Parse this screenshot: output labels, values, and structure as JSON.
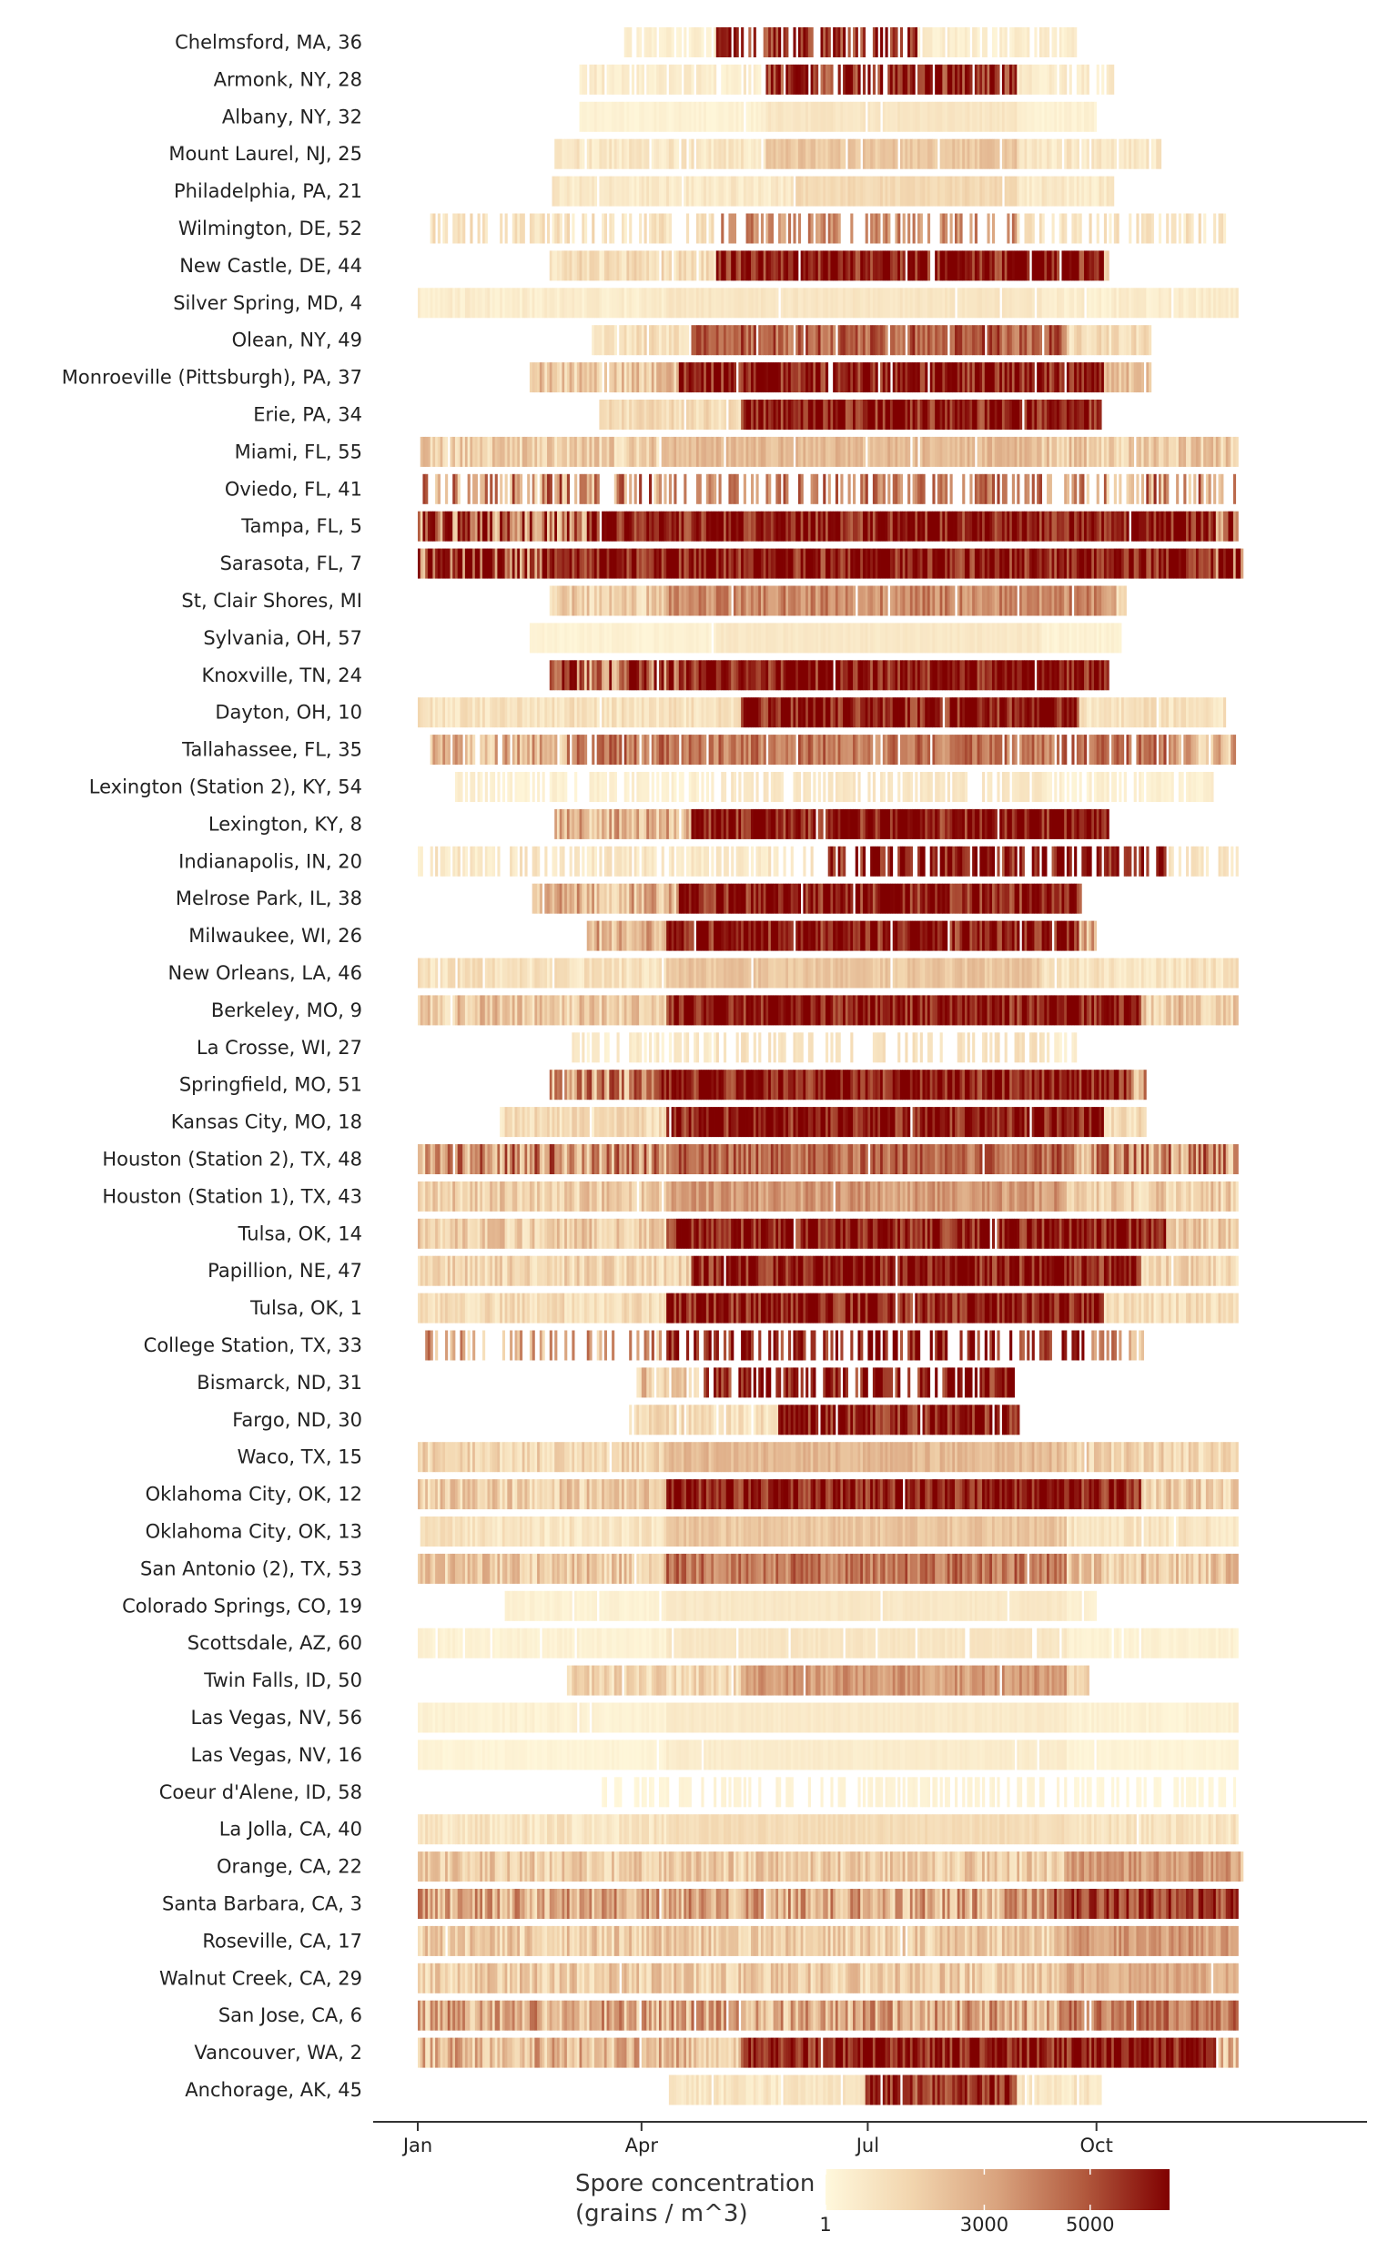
{
  "chart_data": {
    "type": "heatmap",
    "title": "",
    "xlabel": "",
    "ylabel": "",
    "x_range_days": [
      0,
      365
    ],
    "x_ticks": [
      {
        "label": "Jan",
        "day": 0
      },
      {
        "label": "Apr",
        "day": 90
      },
      {
        "label": "Jul",
        "day": 181
      },
      {
        "label": "Oct",
        "day": 273
      }
    ],
    "legend": {
      "title_line1": "Spore concentration",
      "title_line2": "(grains / m^3)",
      "min": 1,
      "max": 6500,
      "ticks": [
        {
          "label": "1",
          "value": 1
        },
        {
          "label": "3000",
          "value": 3000
        },
        {
          "label": "5000",
          "value": 5000
        }
      ],
      "colors": [
        "#fff8dc",
        "#f2d5ae",
        "#d9a37e",
        "#b25a3e",
        "#800000"
      ]
    },
    "stations": [
      {
        "label": "Chelmsford, MA, 36",
        "start": 82,
        "end": 265,
        "base": 500,
        "peak": 6000,
        "peak_start": 120,
        "peak_end": 200,
        "gap": 0.25
      },
      {
        "label": "Armonk, NY, 28",
        "start": 65,
        "end": 280,
        "base": 600,
        "peak": 6000,
        "peak_start": 140,
        "peak_end": 240,
        "gap": 0.2
      },
      {
        "label": "Albany, NY, 32",
        "start": 65,
        "end": 273,
        "base": 300,
        "peak": 900,
        "peak_start": 140,
        "peak_end": 240,
        "gap": 0.02
      },
      {
        "label": "Mount Laurel, NJ, 25",
        "start": 55,
        "end": 300,
        "base": 800,
        "peak": 2200,
        "peak_start": 140,
        "peak_end": 240,
        "gap": 0.05
      },
      {
        "label": "Philadelphia, PA, 21",
        "start": 54,
        "end": 280,
        "base": 700,
        "peak": 1500,
        "peak_start": 150,
        "peak_end": 240,
        "gap": 0.02
      },
      {
        "label": "Wilmington, DE, 52",
        "start": 5,
        "end": 325,
        "base": 1000,
        "peak": 4000,
        "peak_start": 120,
        "peak_end": 240,
        "gap": 0.45
      },
      {
        "label": "New Castle, DE, 44",
        "start": 53,
        "end": 278,
        "base": 1200,
        "peak": 6500,
        "peak_start": 120,
        "peak_end": 275,
        "gap": 0.02
      },
      {
        "label": "Silver Spring, MD, 4",
        "start": 0,
        "end": 330,
        "base": 500,
        "peak": 900,
        "peak_start": 100,
        "peak_end": 250,
        "gap": 0.02
      },
      {
        "label": "Olean, NY, 49",
        "start": 70,
        "end": 295,
        "base": 1200,
        "peak": 5000,
        "peak_start": 110,
        "peak_end": 260,
        "gap": 0.05
      },
      {
        "label": "Monroeville (Pittsburgh), PA, 37",
        "start": 45,
        "end": 295,
        "base": 2000,
        "peak": 6500,
        "peak_start": 105,
        "peak_end": 275,
        "gap": 0.03
      },
      {
        "label": "Erie, PA, 34",
        "start": 73,
        "end": 275,
        "base": 1200,
        "peak": 6500,
        "peak_start": 130,
        "peak_end": 275,
        "gap": 0.02
      },
      {
        "label": "Miami, FL, 55",
        "start": 0,
        "end": 330,
        "base": 1800,
        "peak": 2600,
        "peak_start": 100,
        "peak_end": 250,
        "gap": 0.02
      },
      {
        "label": "Oviedo, FL, 41",
        "start": 0,
        "end": 330,
        "base": 3500,
        "peak": 4500,
        "peak_start": 100,
        "peak_end": 250,
        "gap": 0.5
      },
      {
        "label": "Tampa, FL, 5",
        "start": 0,
        "end": 330,
        "base": 4800,
        "peak": 6500,
        "peak_start": 70,
        "peak_end": 320,
        "gap": 0.01
      },
      {
        "label": "Sarasota, FL, 7",
        "start": 0,
        "end": 332,
        "base": 5500,
        "peak": 6500,
        "peak_start": 50,
        "peak_end": 320,
        "gap": 0
      },
      {
        "label": "St,  Clair Shores, MI",
        "start": 53,
        "end": 285,
        "base": 1800,
        "peak": 4000,
        "peak_start": 100,
        "peak_end": 280,
        "gap": 0.03
      },
      {
        "label": "Sylvania, OH, 57",
        "start": 45,
        "end": 283,
        "base": 300,
        "peak": 800,
        "peak_start": 120,
        "peak_end": 250,
        "gap": 0.02
      },
      {
        "label": "Knoxville, TN, 24",
        "start": 53,
        "end": 278,
        "base": 4500,
        "peak": 6500,
        "peak_start": 105,
        "peak_end": 278,
        "gap": 0.01
      },
      {
        "label": "Dayton, OH, 10",
        "start": 0,
        "end": 325,
        "base": 1000,
        "peak": 6500,
        "peak_start": 130,
        "peak_end": 265,
        "gap": 0.02
      },
      {
        "label": "Tallahassee, FL, 35",
        "start": 5,
        "end": 330,
        "base": 2500,
        "peak": 4500,
        "peak_start": 60,
        "peak_end": 300,
        "gap": 0.12
      },
      {
        "label": "Lexington (Station 2), KY, 54",
        "start": 15,
        "end": 320,
        "base": 400,
        "peak": 900,
        "peak_start": 120,
        "peak_end": 250,
        "gap": 0.35
      },
      {
        "label": "Lexington, KY, 8",
        "start": 55,
        "end": 278,
        "base": 2500,
        "peak": 6500,
        "peak_start": 110,
        "peak_end": 278,
        "gap": 0.02
      },
      {
        "label": "Indianapolis, IN, 20",
        "start": 0,
        "end": 330,
        "base": 800,
        "peak": 6500,
        "peak_start": 160,
        "peak_end": 300,
        "gap": 0.35
      },
      {
        "label": "Melrose Park, IL, 38",
        "start": 46,
        "end": 267,
        "base": 2500,
        "peak": 6500,
        "peak_start": 105,
        "peak_end": 267,
        "gap": 0.01
      },
      {
        "label": "Milwaukee, WI, 26",
        "start": 68,
        "end": 273,
        "base": 2500,
        "peak": 6500,
        "peak_start": 100,
        "peak_end": 265,
        "gap": 0.02
      },
      {
        "label": "New Orleans, LA, 46",
        "start": 0,
        "end": 330,
        "base": 1000,
        "peak": 2200,
        "peak_start": 100,
        "peak_end": 250,
        "gap": 0.02
      },
      {
        "label": "Berkeley, MO, 9",
        "start": 0,
        "end": 330,
        "base": 2000,
        "peak": 6500,
        "peak_start": 100,
        "peak_end": 290,
        "gap": 0.01
      },
      {
        "label": "La Crosse, WI, 27",
        "start": 60,
        "end": 265,
        "base": 600,
        "peak": 1200,
        "peak_start": 120,
        "peak_end": 250,
        "gap": 0.5
      },
      {
        "label": "Springfield, MO, 51",
        "start": 53,
        "end": 293,
        "base": 3500,
        "peak": 6500,
        "peak_start": 95,
        "peak_end": 285,
        "gap": 0.01
      },
      {
        "label": "Kansas City, MO, 18",
        "start": 33,
        "end": 293,
        "base": 1200,
        "peak": 6500,
        "peak_start": 100,
        "peak_end": 275,
        "gap": 0.02
      },
      {
        "label": "Houston (Station 2), TX, 48",
        "start": 0,
        "end": 330,
        "base": 3500,
        "peak": 4800,
        "peak_start": 100,
        "peak_end": 260,
        "gap": 0.01
      },
      {
        "label": "Houston (Station 1), TX, 43",
        "start": 0,
        "end": 330,
        "base": 1800,
        "peak": 3500,
        "peak_start": 100,
        "peak_end": 260,
        "gap": 0.02
      },
      {
        "label": "Tulsa, OK, 14",
        "start": 0,
        "end": 330,
        "base": 1800,
        "peak": 6500,
        "peak_start": 100,
        "peak_end": 300,
        "gap": 0.01
      },
      {
        "label": "Papillion, NE, 47",
        "start": 0,
        "end": 330,
        "base": 1500,
        "peak": 6500,
        "peak_start": 110,
        "peak_end": 290,
        "gap": 0.01
      },
      {
        "label": "Tulsa, OK, 1",
        "start": 0,
        "end": 330,
        "base": 1200,
        "peak": 6500,
        "peak_start": 100,
        "peak_end": 275,
        "gap": 0.01
      },
      {
        "label": "College Station, TX, 33",
        "start": 3,
        "end": 293,
        "base": 3000,
        "peak": 6500,
        "peak_start": 100,
        "peak_end": 270,
        "gap": 0.55
      },
      {
        "label": "Bismarck, ND, 31",
        "start": 88,
        "end": 240,
        "base": 2500,
        "peak": 6500,
        "peak_start": 115,
        "peak_end": 240,
        "gap": 0.3
      },
      {
        "label": "Fargo, ND, 30",
        "start": 85,
        "end": 242,
        "base": 1200,
        "peak": 6500,
        "peak_start": 145,
        "peak_end": 242,
        "gap": 0.08
      },
      {
        "label": "Waco, TX, 15",
        "start": 0,
        "end": 330,
        "base": 1500,
        "peak": 2600,
        "peak_start": 100,
        "peak_end": 260,
        "gap": 0.01
      },
      {
        "label": "Oklahoma City, OK, 12",
        "start": 0,
        "end": 330,
        "base": 1800,
        "peak": 6500,
        "peak_start": 100,
        "peak_end": 290,
        "gap": 0.01
      },
      {
        "label": "Oklahoma City, OK, 13",
        "start": 0,
        "end": 330,
        "base": 900,
        "peak": 2200,
        "peak_start": 100,
        "peak_end": 260,
        "gap": 0.01
      },
      {
        "label": "San Antonio (2), TX, 53",
        "start": 0,
        "end": 330,
        "base": 2000,
        "peak": 4500,
        "peak_start": 100,
        "peak_end": 260,
        "gap": 0.01
      },
      {
        "label": "Colorado Springs, CO, 19",
        "start": 35,
        "end": 273,
        "base": 300,
        "peak": 800,
        "peak_start": 100,
        "peak_end": 260,
        "gap": 0.03
      },
      {
        "label": "Scottsdale, AZ, 60",
        "start": 0,
        "end": 330,
        "base": 300,
        "peak": 900,
        "peak_start": 100,
        "peak_end": 260,
        "gap": 0.05
      },
      {
        "label": "Twin Falls, ID, 50",
        "start": 60,
        "end": 270,
        "base": 1500,
        "peak": 3500,
        "peak_start": 130,
        "peak_end": 260,
        "gap": 0.02
      },
      {
        "label": "Las Vegas, NV, 56",
        "start": 0,
        "end": 330,
        "base": 300,
        "peak": 700,
        "peak_start": 100,
        "peak_end": 260,
        "gap": 0.01
      },
      {
        "label": "Las Vegas, NV, 16",
        "start": 0,
        "end": 330,
        "base": 200,
        "peak": 600,
        "peak_start": 100,
        "peak_end": 260,
        "gap": 0.02
      },
      {
        "label": "Coeur d'Alene, ID, 58",
        "start": 70,
        "end": 330,
        "base": 100,
        "peak": 300,
        "peak_start": 100,
        "peak_end": 260,
        "gap": 0.55
      },
      {
        "label": "La Jolla, CA, 40",
        "start": 0,
        "end": 330,
        "base": 900,
        "peak": 1400,
        "peak_start": 100,
        "peak_end": 260,
        "gap": 0.01
      },
      {
        "label": "Orange, CA, 22",
        "start": 0,
        "end": 332,
        "base": 1800,
        "peak": 3500,
        "peak_start": 260,
        "peak_end": 330,
        "gap": 0
      },
      {
        "label": "Santa Barbara, CA, 3",
        "start": 0,
        "end": 330,
        "base": 2800,
        "peak": 5500,
        "peak_start": 255,
        "peak_end": 330,
        "gap": 0.01
      },
      {
        "label": "Roseville, CA, 17",
        "start": 0,
        "end": 330,
        "base": 1800,
        "peak": 3500,
        "peak_start": 260,
        "peak_end": 330,
        "gap": 0.01
      },
      {
        "label": "Walnut Creek, CA, 29",
        "start": 0,
        "end": 330,
        "base": 1800,
        "peak": 3000,
        "peak_start": 260,
        "peak_end": 330,
        "gap": 0.01
      },
      {
        "label": "San Jose, CA, 6",
        "start": 0,
        "end": 330,
        "base": 2800,
        "peak": 4500,
        "peak_start": 260,
        "peak_end": 330,
        "gap": 0.01
      },
      {
        "label": "Vancouver, WA, 2",
        "start": 0,
        "end": 330,
        "base": 2500,
        "peak": 6500,
        "peak_start": 130,
        "peak_end": 320,
        "gap": 0.01
      },
      {
        "label": "Anchorage, AK, 45",
        "start": 100,
        "end": 275,
        "base": 800,
        "peak": 5500,
        "peak_start": 180,
        "peak_end": 240,
        "gap": 0.05
      }
    ]
  }
}
